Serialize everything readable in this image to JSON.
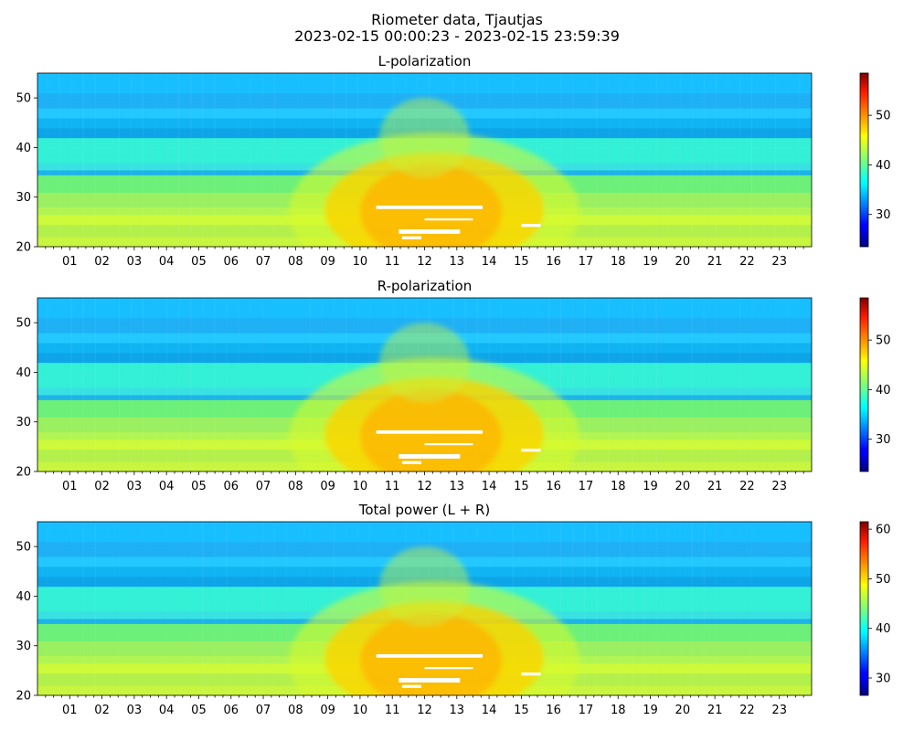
{
  "figure": {
    "title_line1": "Riometer data, Tjautjas",
    "title_line2": "2023-02-15 00:00:23 - 2023-02-15 23:59:39"
  },
  "chart_data": [
    {
      "type": "heatmap",
      "title": "L-polarization",
      "xlabel": "",
      "ylabel": "",
      "x_tick_labels": [
        "01",
        "02",
        "03",
        "04",
        "05",
        "06",
        "07",
        "08",
        "09",
        "10",
        "11",
        "12",
        "13",
        "14",
        "15",
        "16",
        "17",
        "18",
        "19",
        "20",
        "21",
        "22",
        "23"
      ],
      "x_range_hours": [
        0,
        24
      ],
      "y_ticks": [
        20,
        30,
        40,
        50
      ],
      "ylim": [
        20,
        55
      ],
      "colorbar": {
        "ticks": [
          30,
          40,
          50
        ],
        "range": [
          23.5,
          58.5
        ],
        "colormap": "jet"
      },
      "grid": false
    },
    {
      "type": "heatmap",
      "title": "R-polarization",
      "xlabel": "",
      "ylabel": "",
      "x_tick_labels": [
        "01",
        "02",
        "03",
        "04",
        "05",
        "06",
        "07",
        "08",
        "09",
        "10",
        "11",
        "12",
        "13",
        "14",
        "15",
        "16",
        "17",
        "18",
        "19",
        "20",
        "21",
        "22",
        "23"
      ],
      "x_range_hours": [
        0,
        24
      ],
      "y_ticks": [
        20,
        30,
        40,
        50
      ],
      "ylim": [
        20,
        55
      ],
      "colorbar": {
        "ticks": [
          30,
          40,
          50
        ],
        "range": [
          23.5,
          58.5
        ],
        "colormap": "jet"
      },
      "grid": false
    },
    {
      "type": "heatmap",
      "title": "Total power (L + R)",
      "xlabel": "",
      "ylabel": "",
      "x_tick_labels": [
        "01",
        "02",
        "03",
        "04",
        "05",
        "06",
        "07",
        "08",
        "09",
        "10",
        "11",
        "12",
        "13",
        "14",
        "15",
        "16",
        "17",
        "18",
        "19",
        "20",
        "21",
        "22",
        "23"
      ],
      "x_range_hours": [
        0,
        24
      ],
      "y_ticks": [
        20,
        30,
        40,
        50
      ],
      "ylim": [
        20,
        55
      ],
      "colorbar": {
        "ticks": [
          30,
          40,
          50,
          60
        ],
        "range": [
          26.5,
          61.5
        ],
        "colormap": "jet"
      },
      "grid": false
    }
  ]
}
